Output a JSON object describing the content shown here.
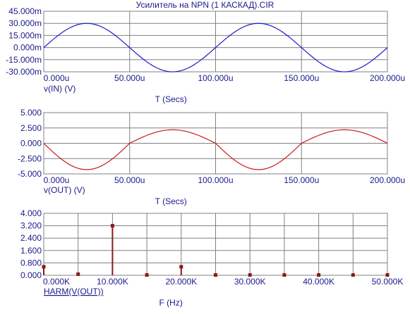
{
  "title": "Усилитель на NPN  (1 КАСКАД).CIR",
  "chart_data": [
    {
      "type": "line",
      "series": [
        {
          "name": "v(IN) (V)",
          "color": "#1a1acc",
          "amplitude_m": 30,
          "period_u": 100,
          "phase": "sine"
        }
      ],
      "xlabel": "T (Secs)",
      "xlim": [
        0,
        200
      ],
      "xticks": [
        "0.000u",
        "50.000u",
        "100.000u",
        "150.000u",
        "200.000u"
      ],
      "ylim": [
        -30,
        45
      ],
      "yticks": [
        "45.000m",
        "30.000m",
        "15.000m",
        "0.000m",
        "-15.000m",
        "-30.000m"
      ],
      "grid": true
    },
    {
      "type": "line",
      "series": [
        {
          "name": "v(OUT) (V)",
          "color": "#cc1a1a",
          "amplitude_pos": 2.2,
          "amplitude_neg": 4.3,
          "period_u": 100,
          "phase": "inverted-sine"
        }
      ],
      "xlabel": "T (Secs)",
      "xlim": [
        0,
        200
      ],
      "xticks": [
        "0.000u",
        "50.000u",
        "100.000u",
        "150.000u",
        "200.000u"
      ],
      "ylim": [
        -5,
        5
      ],
      "yticks": [
        "5.000",
        "2.500",
        "0.000",
        "-2.500",
        "-5.000"
      ],
      "grid": true
    },
    {
      "type": "bar",
      "series": [
        {
          "name": "HARM(V(OUT))",
          "color": "#8a1a1a",
          "x_k": [
            0,
            5,
            10,
            15,
            20,
            25,
            30,
            35,
            40,
            45,
            50
          ],
          "values": [
            0.55,
            0.07,
            3.2,
            0.02,
            0.55,
            0.02,
            0.02,
            0.02,
            0.02,
            0.02,
            0.02
          ]
        }
      ],
      "xlabel": "F (Hz)",
      "xlim": [
        0,
        50
      ],
      "xticks": [
        "0.000K",
        "10.000K",
        "20.000K",
        "30.000K",
        "40.000K",
        "50.000K"
      ],
      "ylim": [
        0,
        4
      ],
      "yticks": [
        "4.000",
        "3.200",
        "2.400",
        "1.600",
        "0.800",
        "0.000"
      ],
      "grid": true
    }
  ]
}
